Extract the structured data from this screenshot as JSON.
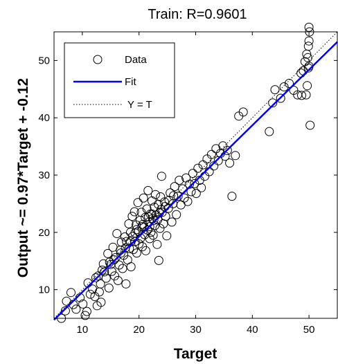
{
  "chart_data": {
    "type": "scatter",
    "title": "Train: R=0.9601",
    "xlabel": "Target",
    "ylabel": "Output ~= 0.97*Target + -0.12",
    "xlim": [
      5,
      55
    ],
    "ylim": [
      5,
      55
    ],
    "xticks": [
      10,
      20,
      30,
      40,
      50
    ],
    "yticks": [
      10,
      20,
      30,
      40,
      50
    ],
    "grid": false,
    "legend_position": "top-left",
    "legend": [
      {
        "label": "Data",
        "style": "circle"
      },
      {
        "label": "Fit",
        "style": "solid-line"
      },
      {
        "label": "Y = T",
        "style": "dotted-line"
      }
    ],
    "colors": {
      "data": "#000000",
      "fit": "#0000ff",
      "identity": "#000000"
    },
    "fit": {
      "slope": 0.97,
      "intercept": -0.12
    },
    "series": [
      {
        "name": "Data",
        "points": [
          [
            6.3,
            5.0
          ],
          [
            7.0,
            6.3
          ],
          [
            7.2,
            8.0
          ],
          [
            8.0,
            9.5
          ],
          [
            8.4,
            7.4
          ],
          [
            8.9,
            6.6
          ],
          [
            9.6,
            8.6
          ],
          [
            10.1,
            7.5
          ],
          [
            10.5,
            5.5
          ],
          [
            10.8,
            6.2
          ],
          [
            11.0,
            11.2
          ],
          [
            11.4,
            9.2
          ],
          [
            11.8,
            10.1
          ],
          [
            12.2,
            8.8
          ],
          [
            12.6,
            7.2
          ],
          [
            12.8,
            12.4
          ],
          [
            13.0,
            9.6
          ],
          [
            13.2,
            11.0
          ],
          [
            13.3,
            7.8
          ],
          [
            13.7,
            14.5
          ],
          [
            13.9,
            13.1
          ],
          [
            14.2,
            12.0
          ],
          [
            14.5,
            16.3
          ],
          [
            14.7,
            10.3
          ],
          [
            15.0,
            14.4
          ],
          [
            15.2,
            13.2
          ],
          [
            15.4,
            17.4
          ],
          [
            15.7,
            12.4
          ],
          [
            15.9,
            15.6
          ],
          [
            16.1,
            19.8
          ],
          [
            16.3,
            11.6
          ],
          [
            16.5,
            14.3
          ],
          [
            16.8,
            16.4
          ],
          [
            16.9,
            18.3
          ],
          [
            17.1,
            13.7
          ],
          [
            17.3,
            16.0
          ],
          [
            17.5,
            19.2
          ],
          [
            17.7,
            11.0
          ],
          [
            17.8,
            18.4
          ],
          [
            18.0,
            15.2
          ],
          [
            18.2,
            21.5
          ],
          [
            18.3,
            17.2
          ],
          [
            18.5,
            20.0
          ],
          [
            18.6,
            14.0
          ],
          [
            18.8,
            22.8
          ],
          [
            18.9,
            19.3
          ],
          [
            19.0,
            17.0
          ],
          [
            19.2,
            23.6
          ],
          [
            19.3,
            18.4
          ],
          [
            19.5,
            21.3
          ],
          [
            19.6,
            16.4
          ],
          [
            19.8,
            25.2
          ],
          [
            19.9,
            20.2
          ],
          [
            20.0,
            18.0
          ],
          [
            20.2,
            22.1
          ],
          [
            20.3,
            19.0
          ],
          [
            20.4,
            23.5
          ],
          [
            20.6,
            17.5
          ],
          [
            20.7,
            21.4
          ],
          [
            20.8,
            26.0
          ],
          [
            21.0,
            19.6
          ],
          [
            21.1,
            22.6
          ],
          [
            21.2,
            16.8
          ],
          [
            21.4,
            24.1
          ],
          [
            21.5,
            20.4
          ],
          [
            21.6,
            27.3
          ],
          [
            21.8,
            21.8
          ],
          [
            21.9,
            18.9
          ],
          [
            22.0,
            23.2
          ],
          [
            22.1,
            20.0
          ],
          [
            22.3,
            25.5
          ],
          [
            22.4,
            22.4
          ],
          [
            22.5,
            19.5
          ],
          [
            22.7,
            24.4
          ],
          [
            22.8,
            21.2
          ],
          [
            22.9,
            26.6
          ],
          [
            23.0,
            23.0
          ],
          [
            23.2,
            17.9
          ],
          [
            23.3,
            22.2
          ],
          [
            23.4,
            24.9
          ],
          [
            23.5,
            15.1
          ],
          [
            23.7,
            20.7
          ],
          [
            23.8,
            26.2
          ],
          [
            24.0,
            29.8
          ],
          [
            24.1,
            23.5
          ],
          [
            24.3,
            21.5
          ],
          [
            24.5,
            25.3
          ],
          [
            24.7,
            22.8
          ],
          [
            24.9,
            19.4
          ],
          [
            25.2,
            24.2
          ],
          [
            25.5,
            26.9
          ],
          [
            25.8,
            21.8
          ],
          [
            26.0,
            25.0
          ],
          [
            26.3,
            28.0
          ],
          [
            26.6,
            23.1
          ],
          [
            26.9,
            26.3
          ],
          [
            27.1,
            29.1
          ],
          [
            27.4,
            24.8
          ],
          [
            27.7,
            27.6
          ],
          [
            28.0,
            26.0
          ],
          [
            28.3,
            29.5
          ],
          [
            28.6,
            25.4
          ],
          [
            28.9,
            28.4
          ],
          [
            29.2,
            27.1
          ],
          [
            29.5,
            30.3
          ],
          [
            29.8,
            28.5
          ],
          [
            30.1,
            26.8
          ],
          [
            30.4,
            31.2
          ],
          [
            30.7,
            29.1
          ],
          [
            31.0,
            27.8
          ],
          [
            31.3,
            31.8
          ],
          [
            31.6,
            29.8
          ],
          [
            32.0,
            32.8
          ],
          [
            32.4,
            30.6
          ],
          [
            32.8,
            33.6
          ],
          [
            33.2,
            31.6
          ],
          [
            33.6,
            34.6
          ],
          [
            34.0,
            32.5
          ],
          [
            34.4,
            33.8
          ],
          [
            34.8,
            35.1
          ],
          [
            35.2,
            33.3
          ],
          [
            35.6,
            34.3
          ],
          [
            36.0,
            32.1
          ],
          [
            36.4,
            26.3
          ],
          [
            37.0,
            33.4
          ],
          [
            37.6,
            40.3
          ],
          [
            38.4,
            41.0
          ],
          [
            43.0,
            37.6
          ],
          [
            43.6,
            42.6
          ],
          [
            44.0,
            44.9
          ],
          [
            45.0,
            43.4
          ],
          [
            45.6,
            45.4
          ],
          [
            46.5,
            46.0
          ],
          [
            47.3,
            44.8
          ],
          [
            48.0,
            44.0
          ],
          [
            48.6,
            47.8
          ],
          [
            48.7,
            43.9
          ],
          [
            49.0,
            48.2
          ],
          [
            49.3,
            49.8
          ],
          [
            49.6,
            51.1
          ],
          [
            49.8,
            50.5
          ],
          [
            49.9,
            52.5
          ],
          [
            50.0,
            53.4
          ],
          [
            50.1,
            55.0
          ],
          [
            50.0,
            55.8
          ],
          [
            50.2,
            38.7
          ],
          [
            49.9,
            48.7
          ],
          [
            49.7,
            45.6
          ],
          [
            49.5,
            44.0
          ],
          [
            50.0,
            49.0
          ],
          [
            18.5,
            18.4
          ],
          [
            19.6,
            20.5
          ],
          [
            20.9,
            20.9
          ],
          [
            21.7,
            22.7
          ],
          [
            22.6,
            22.1
          ],
          [
            23.6,
            23.4
          ],
          [
            20.5,
            21.0
          ],
          [
            19.3,
            19.9
          ],
          [
            21.9,
            21.0
          ],
          [
            22.3,
            23.2
          ],
          [
            17.6,
            17.3
          ],
          [
            16.7,
            16.9
          ],
          [
            15.6,
            15.2
          ],
          [
            14.8,
            14.8
          ],
          [
            13.5,
            13.4
          ],
          [
            12.4,
            12.1
          ],
          [
            23.9,
            24.0
          ],
          [
            24.6,
            24.5
          ],
          [
            25.3,
            25.6
          ],
          [
            26.1,
            26.4
          ]
        ]
      }
    ]
  }
}
